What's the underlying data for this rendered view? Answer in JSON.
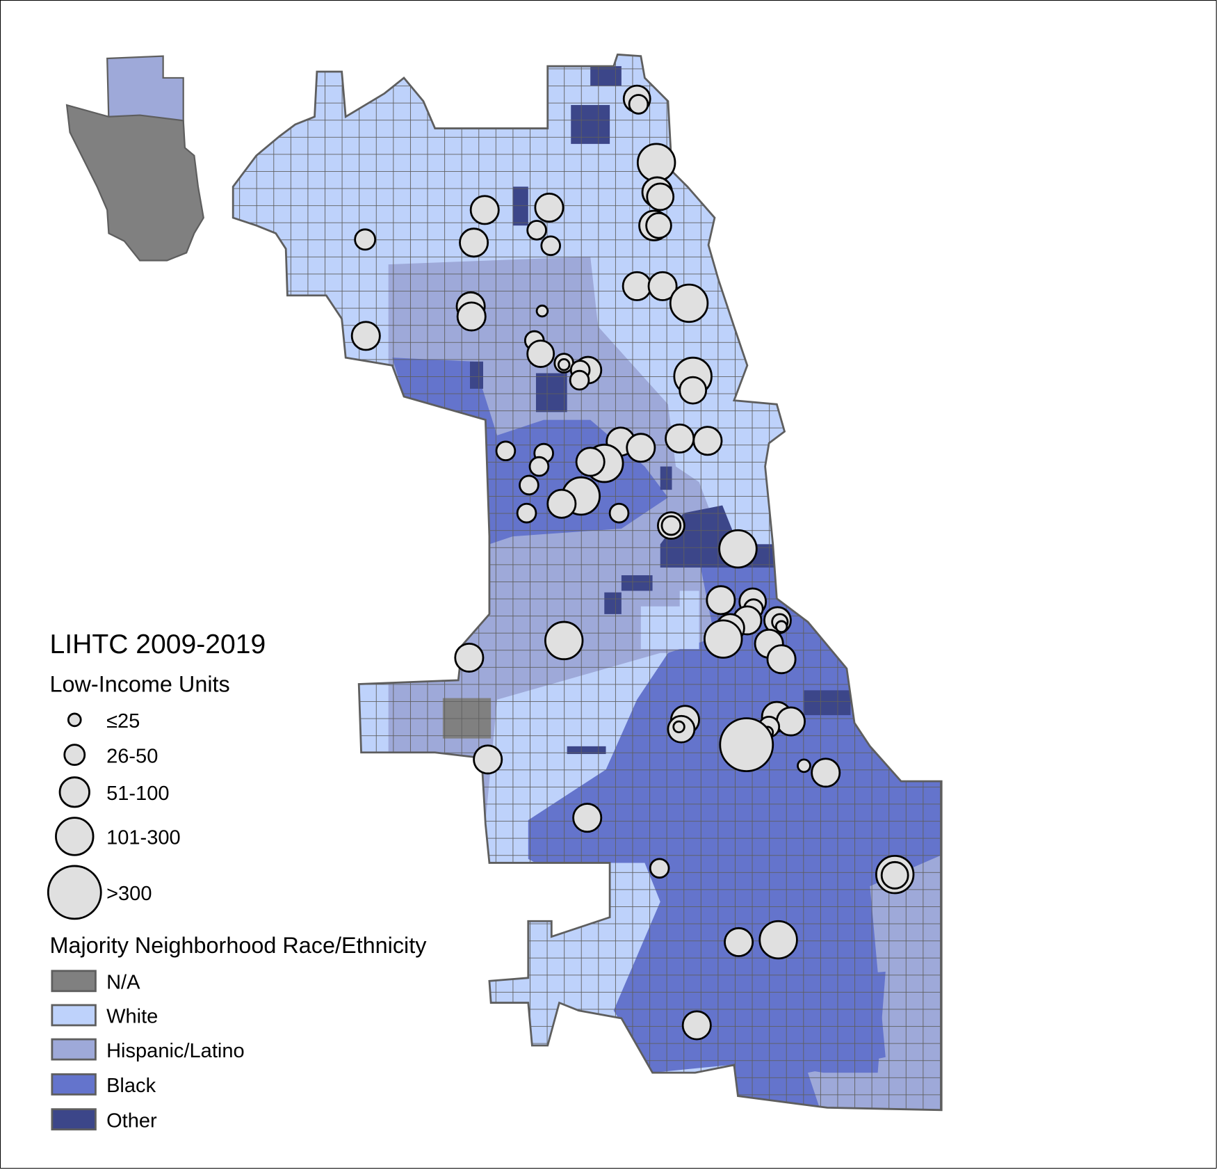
{
  "legend": {
    "title": "LIHTC 2009-2019",
    "units_heading": "Low-Income Units",
    "size_classes": [
      {
        "label": "≤25",
        "r": 8
      },
      {
        "label": "26-50",
        "r": 13
      },
      {
        "label": "51-100",
        "r": 19
      },
      {
        "label": "101-300",
        "r": 24
      },
      {
        "label": ">300",
        "r": 34
      }
    ],
    "race_heading": "Majority Neighborhood Race/Ethnicity",
    "categories": [
      {
        "label": "N/A",
        "color": "#808080"
      },
      {
        "label": "White",
        "color": "#bed2fb"
      },
      {
        "label": "Hispanic/Latino",
        "color": "#9ea9d9"
      },
      {
        "label": "Black",
        "color": "#6474cc"
      },
      {
        "label": "Other",
        "color": "#3c4689"
      }
    ]
  },
  "colors": {
    "border": "#5e5e5e",
    "point_fill": "#e0e0e0",
    "point_stroke": "#000000"
  },
  "points": [
    [
      820,
      127,
      17
    ],
    [
      822,
      134,
      12
    ],
    [
      845,
      209,
      24
    ],
    [
      846,
      247,
      19
    ],
    [
      850,
      253,
      17
    ],
    [
      842,
      290,
      19
    ],
    [
      848,
      290,
      16
    ],
    [
      624,
      270,
      18
    ],
    [
      707,
      267,
      18
    ],
    [
      691,
      296,
      12
    ],
    [
      709,
      316,
      12
    ],
    [
      610,
      312,
      18
    ],
    [
      470,
      308,
      13
    ],
    [
      820,
      368,
      18
    ],
    [
      853,
      368,
      18
    ],
    [
      887,
      390,
      24
    ],
    [
      606,
      394,
      18
    ],
    [
      607,
      407,
      18
    ],
    [
      471,
      432,
      18
    ],
    [
      698,
      400,
      7
    ],
    [
      688,
      438,
      12
    ],
    [
      696,
      455,
      17
    ],
    [
      726,
      467,
      12
    ],
    [
      726,
      469,
      7
    ],
    [
      757,
      476,
      17
    ],
    [
      747,
      476,
      12
    ],
    [
      746,
      489,
      12
    ],
    [
      892,
      484,
      24
    ],
    [
      892,
      502,
      17
    ],
    [
      875,
      564,
      18
    ],
    [
      911,
      567,
      18
    ],
    [
      799,
      568,
      18
    ],
    [
      825,
      576,
      18
    ],
    [
      651,
      580,
      12
    ],
    [
      700,
      583,
      12
    ],
    [
      694,
      600,
      12
    ],
    [
      778,
      596,
      24
    ],
    [
      760,
      594,
      18
    ],
    [
      681,
      624,
      12
    ],
    [
      748,
      638,
      24
    ],
    [
      723,
      648,
      18
    ],
    [
      678,
      660,
      12
    ],
    [
      797,
      660,
      12
    ],
    [
      864,
      676,
      17
    ],
    [
      864,
      676,
      12
    ],
    [
      950,
      706,
      24
    ],
    [
      928,
      772,
      18
    ],
    [
      969,
      774,
      17
    ],
    [
      970,
      783,
      12
    ],
    [
      962,
      798,
      18
    ],
    [
      1001,
      798,
      17
    ],
    [
      1004,
      800,
      10
    ],
    [
      1006,
      806,
      7
    ],
    [
      940,
      808,
      18
    ],
    [
      931,
      822,
      24
    ],
    [
      990,
      828,
      18
    ],
    [
      1006,
      848,
      18
    ],
    [
      726,
      824,
      24
    ],
    [
      604,
      846,
      18
    ],
    [
      882,
      926,
      18
    ],
    [
      877,
      938,
      17
    ],
    [
      874,
      935,
      7
    ],
    [
      1000,
      922,
      19
    ],
    [
      1018,
      928,
      18
    ],
    [
      990,
      935,
      13
    ],
    [
      988,
      942,
      7
    ],
    [
      961,
      958,
      34
    ],
    [
      628,
      977,
      18
    ],
    [
      1035,
      985,
      8
    ],
    [
      1063,
      994,
      18
    ],
    [
      756,
      1052,
      18
    ],
    [
      849,
      1117,
      12
    ],
    [
      1152,
      1125,
      24
    ],
    [
      1152,
      1126,
      17
    ],
    [
      951,
      1212,
      18
    ],
    [
      1002,
      1209,
      24
    ],
    [
      897,
      1319,
      18
    ]
  ]
}
